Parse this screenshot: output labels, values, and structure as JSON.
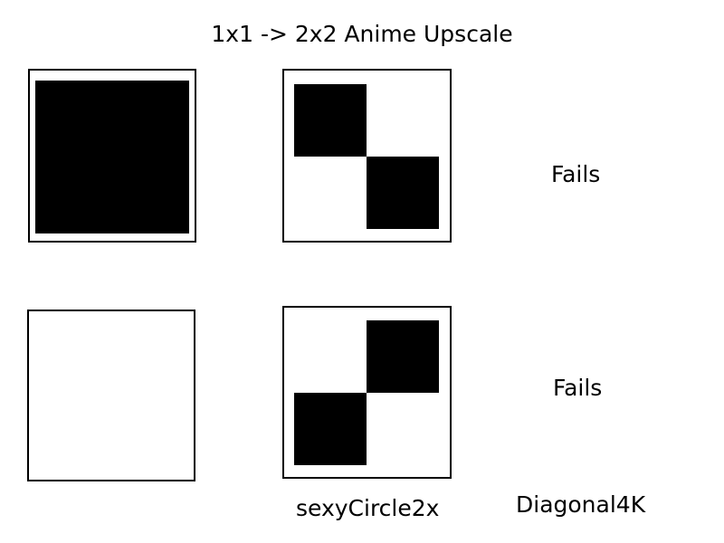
{
  "title": "1x1 -> 2x2 Anime Upscale",
  "rows": [
    {
      "input": {
        "pixel": "black"
      },
      "output": {
        "pattern": "diagonal",
        "cells": [
          "black",
          "white",
          "white",
          "black"
        ]
      },
      "result": "Fails"
    },
    {
      "input": {
        "pixel": "white"
      },
      "output": {
        "pattern": "anti-diagonal",
        "cells": [
          "white",
          "black",
          "black",
          "white"
        ]
      },
      "result": "Fails"
    }
  ],
  "captions": {
    "output_column": "sexyCircle2x",
    "result_column": "Diagonal4K"
  },
  "colors": {
    "black": "#000000",
    "white": "#ffffff"
  }
}
